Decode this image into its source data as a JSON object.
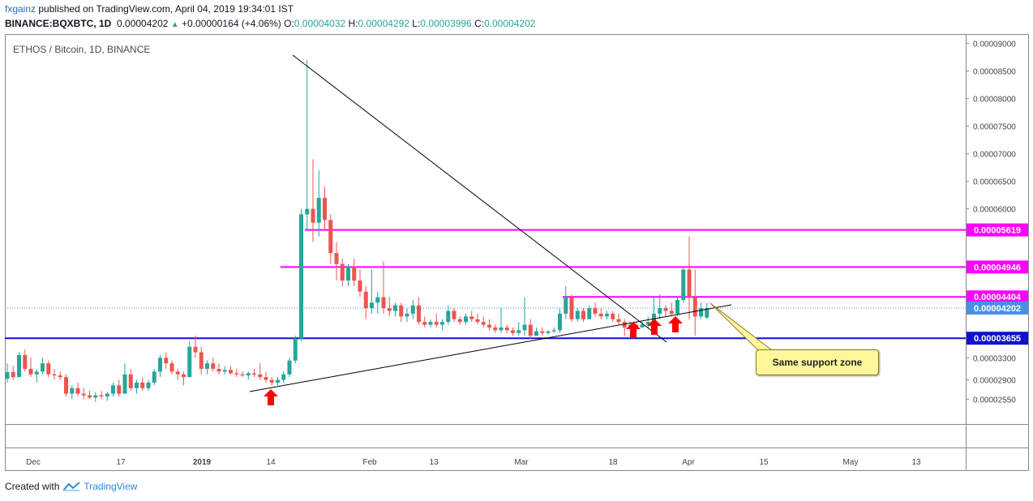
{
  "header": {
    "author": "fxgainz",
    "published_text": "published on TradingView.com, April 04, 2019 19:34:01 IST",
    "symbol": "BINANCE:BQXBTC, 1D",
    "last": "0.00004202",
    "change_arrow": "▲",
    "change": "+0.00000164 (+4.06%)",
    "o_label": "O:",
    "o_value": "0.00004032",
    "h_label": "H:",
    "h_value": "0.00004292",
    "l_label": "L:",
    "l_value": "0.00003996",
    "c_label": "C:",
    "c_value": "0.00004202"
  },
  "legend": "ETHOS / Bitcoin, 1D, BINANCE",
  "price_axis": {
    "ticks": [
      "0.00009000",
      "0.00008500",
      "0.00008000",
      "0.00007500",
      "0.00007000",
      "0.00006500",
      "0.00006000",
      "0.00003300",
      "0.00002900",
      "0.00002550"
    ],
    "tags": [
      {
        "text": "0.00005619",
        "color": "#ff00ff"
      },
      {
        "text": "0.00004946",
        "color": "#ff00ff"
      },
      {
        "text": "0.00004404",
        "color": "#ff00ff"
      },
      {
        "text": "0.00004202",
        "color": "#4a90e2"
      },
      {
        "text": "0.00003655",
        "color": "#1010d0"
      }
    ]
  },
  "time_axis": [
    "Dec",
    "17",
    "2019",
    "14",
    "Feb",
    "13",
    "Mar",
    "18",
    "Apr",
    "15",
    "May",
    "13"
  ],
  "annotation": "Same support zone",
  "footer": {
    "created_with": "Created with",
    "brand": "TradingView"
  },
  "colors": {
    "up": "#26a69a",
    "down": "#ef5350",
    "magenta": "#ff00ff",
    "blue": "#1010d0",
    "last": "#4a90e2"
  },
  "chart_data": {
    "type": "candlestick",
    "title": "ETHOS / Bitcoin, 1D, BINANCE",
    "x_range": [
      "2018-11-26",
      "2019-04-04"
    ],
    "ylim": [
      2.1e-05,
      9.17e-05
    ],
    "candles": [
      [
        2.92,
        3.2,
        2.85,
        3.04
      ],
      [
        3.04,
        3.15,
        2.9,
        2.95
      ],
      [
        2.95,
        3.4,
        2.95,
        3.35
      ],
      [
        3.35,
        3.45,
        3.05,
        3.1
      ],
      [
        3.1,
        3.3,
        2.95,
        3.0
      ],
      [
        3.0,
        3.1,
        2.85,
        3.05
      ],
      [
        3.05,
        3.3,
        3.0,
        3.2
      ],
      [
        3.2,
        3.25,
        2.95,
        3.0
      ],
      [
        3.0,
        3.1,
        2.9,
        2.98
      ],
      [
        2.98,
        3.05,
        2.9,
        2.95
      ],
      [
        2.95,
        3.0,
        2.6,
        2.65
      ],
      [
        2.65,
        2.8,
        2.55,
        2.75
      ],
      [
        2.75,
        2.85,
        2.6,
        2.65
      ],
      [
        2.65,
        2.75,
        2.55,
        2.62
      ],
      [
        2.62,
        2.7,
        2.55,
        2.58
      ],
      [
        2.58,
        2.68,
        2.5,
        2.62
      ],
      [
        2.62,
        2.7,
        2.55,
        2.6
      ],
      [
        2.6,
        2.68,
        2.52,
        2.65
      ],
      [
        2.65,
        2.85,
        2.6,
        2.8
      ],
      [
        2.8,
        2.9,
        2.6,
        2.65
      ],
      [
        2.65,
        3.2,
        2.65,
        3.0
      ],
      [
        3.0,
        3.1,
        2.7,
        2.75
      ],
      [
        2.75,
        2.9,
        2.65,
        2.85
      ],
      [
        2.85,
        2.95,
        2.7,
        2.75
      ],
      [
        2.75,
        2.9,
        2.7,
        2.85
      ],
      [
        2.85,
        3.1,
        2.8,
        3.05
      ],
      [
        3.05,
        3.35,
        2.95,
        3.3
      ],
      [
        3.3,
        3.4,
        3.1,
        3.2
      ],
      [
        3.2,
        3.25,
        3.0,
        3.05
      ],
      [
        3.05,
        3.1,
        2.9,
        3.0
      ],
      [
        3.0,
        3.05,
        2.8,
        2.95
      ],
      [
        2.95,
        3.6,
        2.95,
        3.5
      ],
      [
        3.5,
        3.7,
        3.3,
        3.4
      ],
      [
        3.4,
        3.5,
        3.0,
        3.1
      ],
      [
        3.1,
        3.25,
        3.0,
        3.2
      ],
      [
        3.2,
        3.3,
        3.05,
        3.1
      ],
      [
        3.1,
        3.2,
        3.0,
        3.05
      ],
      [
        3.05,
        3.15,
        3.0,
        3.08
      ],
      [
        3.08,
        3.15,
        3.0,
        3.02
      ],
      [
        3.02,
        3.1,
        2.95,
        3.0
      ],
      [
        3.0,
        3.05,
        2.95,
        2.98
      ],
      [
        2.98,
        3.05,
        2.9,
        3.02
      ],
      [
        3.02,
        3.1,
        2.95,
        3.0
      ],
      [
        3.0,
        3.2,
        2.9,
        2.95
      ],
      [
        2.95,
        3.05,
        2.85,
        2.9
      ],
      [
        2.9,
        2.95,
        2.8,
        2.85
      ],
      [
        2.85,
        2.95,
        2.8,
        2.9
      ],
      [
        2.9,
        3.05,
        2.85,
        3.0
      ],
      [
        3.0,
        3.3,
        2.95,
        3.25
      ],
      [
        3.25,
        3.7,
        3.2,
        3.65
      ],
      [
        3.65,
        6.0,
        3.6,
        5.9
      ],
      [
        5.9,
        8.7,
        5.6,
        6.0
      ],
      [
        6.0,
        6.9,
        5.4,
        5.75
      ],
      [
        5.75,
        6.7,
        5.5,
        6.2
      ],
      [
        6.2,
        6.4,
        5.6,
        5.8
      ],
      [
        5.8,
        5.9,
        5.0,
        5.2
      ],
      [
        5.2,
        5.4,
        4.7,
        5.0
      ],
      [
        5.0,
        5.1,
        4.6,
        4.7
      ],
      [
        4.7,
        5.0,
        4.6,
        4.95
      ],
      [
        4.95,
        5.1,
        4.6,
        4.7
      ],
      [
        4.7,
        4.9,
        4.4,
        4.5
      ],
      [
        4.5,
        4.6,
        4.0,
        4.2
      ],
      [
        4.2,
        4.9,
        4.1,
        4.3
      ],
      [
        4.3,
        4.5,
        4.1,
        4.4
      ],
      [
        4.4,
        5.05,
        4.1,
        4.2
      ],
      [
        4.2,
        4.4,
        4.05,
        4.15
      ],
      [
        4.15,
        4.3,
        4.05,
        4.25
      ],
      [
        4.25,
        4.3,
        3.95,
        4.05
      ],
      [
        4.05,
        4.2,
        3.95,
        4.1
      ],
      [
        4.1,
        4.35,
        4.0,
        4.25
      ],
      [
        4.25,
        4.4,
        3.9,
        3.95
      ],
      [
        3.95,
        4.05,
        3.85,
        3.9
      ],
      [
        3.9,
        4.0,
        3.85,
        3.95
      ],
      [
        3.95,
        4.1,
        3.85,
        3.9
      ],
      [
        3.9,
        4.0,
        3.8,
        3.95
      ],
      [
        3.95,
        4.25,
        3.9,
        4.15
      ],
      [
        4.15,
        4.2,
        3.95,
        4.0
      ],
      [
        4.0,
        4.05,
        3.9,
        3.95
      ],
      [
        3.95,
        4.1,
        3.9,
        4.05
      ],
      [
        4.05,
        4.15,
        3.95,
        4.0
      ],
      [
        4.0,
        4.1,
        3.9,
        3.95
      ],
      [
        3.95,
        4.05,
        3.85,
        3.9
      ],
      [
        3.9,
        4.0,
        3.8,
        3.85
      ],
      [
        3.85,
        3.9,
        3.75,
        3.8
      ],
      [
        3.8,
        4.2,
        3.75,
        3.85
      ],
      [
        3.85,
        3.9,
        3.75,
        3.8
      ],
      [
        3.8,
        3.85,
        3.7,
        3.75
      ],
      [
        3.75,
        3.95,
        3.7,
        3.8
      ],
      [
        3.8,
        4.4,
        3.7,
        3.9
      ],
      [
        3.9,
        4.0,
        3.65,
        3.7
      ],
      [
        3.7,
        3.85,
        3.7,
        3.78
      ],
      [
        3.78,
        3.85,
        3.7,
        3.75
      ],
      [
        3.75,
        3.8,
        3.72,
        3.78
      ],
      [
        3.78,
        3.85,
        3.75,
        3.8
      ],
      [
        3.8,
        4.2,
        3.75,
        4.1
      ],
      [
        4.1,
        4.6,
        4.0,
        4.4
      ],
      [
        4.4,
        4.45,
        3.95,
        4.0
      ],
      [
        4.0,
        4.2,
        3.95,
        4.15
      ],
      [
        4.15,
        4.2,
        3.95,
        4.0
      ],
      [
        4.0,
        4.25,
        4.0,
        4.2
      ],
      [
        4.2,
        4.3,
        4.05,
        4.1
      ],
      [
        4.1,
        4.2,
        4.0,
        4.05
      ],
      [
        4.05,
        4.15,
        4.0,
        4.1
      ],
      [
        4.1,
        4.15,
        3.95,
        4.0
      ],
      [
        4.0,
        4.1,
        3.9,
        3.95
      ],
      [
        3.95,
        4.0,
        3.7,
        3.85
      ],
      [
        3.85,
        3.95,
        3.75,
        3.9
      ],
      [
        3.9,
        3.95,
        3.8,
        3.85
      ],
      [
        3.85,
        3.95,
        3.85,
        3.9
      ],
      [
        3.9,
        4.05,
        3.85,
        3.95
      ],
      [
        3.95,
        4.4,
        3.9,
        4.1
      ],
      [
        4.1,
        4.45,
        4.0,
        4.2
      ],
      [
        4.2,
        4.25,
        4.05,
        4.15
      ],
      [
        4.15,
        4.3,
        4.05,
        4.1
      ],
      [
        4.1,
        4.4,
        4.05,
        4.35
      ],
      [
        4.35,
        4.95,
        4.3,
        4.9
      ],
      [
        4.9,
        5.5,
        4.0,
        4.4
      ],
      [
        4.4,
        4.9,
        3.7,
        4.05
      ],
      [
        4.05,
        4.3,
        4.0,
        4.2
      ],
      [
        4.03,
        4.29,
        4.0,
        4.2
      ]
    ],
    "horizontal_levels": [
      5.619e-05,
      4.946e-05,
      4.404e-05,
      4.202e-05,
      3.655e-05
    ],
    "last_price": 4.202e-05
  }
}
